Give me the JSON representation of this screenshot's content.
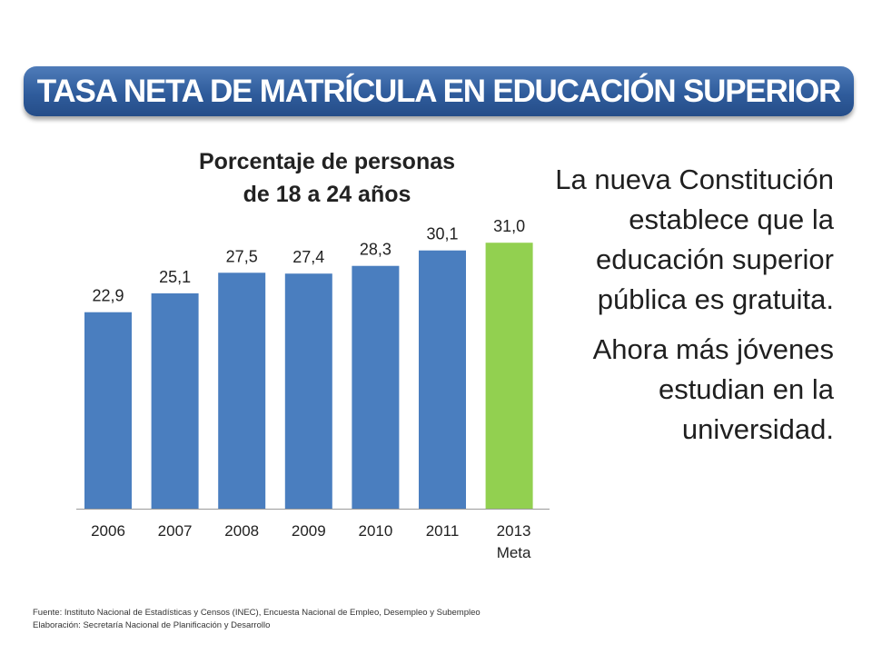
{
  "header": {
    "title": "TASA NETA DE MATRÍCULA EN EDUCACIÓN SUPERIOR"
  },
  "chart_data": {
    "type": "bar",
    "title_lines": [
      "Porcentaje de personas",
      "de 18 a 24 años"
    ],
    "categories": [
      [
        "2006"
      ],
      [
        "2007"
      ],
      [
        "2008"
      ],
      [
        "2009"
      ],
      [
        "2010"
      ],
      [
        "2011"
      ],
      [
        "2013",
        "Meta"
      ]
    ],
    "values_label": [
      "22,9",
      "25,1",
      "27,5",
      "27,4",
      "28,3",
      "30,1",
      "31,0"
    ],
    "values": [
      22.9,
      25.1,
      27.5,
      27.4,
      28.3,
      30.1,
      31.0
    ],
    "colors": [
      "#4a7ebf",
      "#4a7ebf",
      "#4a7ebf",
      "#4a7ebf",
      "#4a7ebf",
      "#4a7ebf",
      "#92d050"
    ],
    "ylim": [
      0,
      36
    ],
    "grid": false,
    "legend": "none"
  },
  "side_text": {
    "paragraph1": "La nueva Constitución establece que la educación superior pública es gratuita.",
    "paragraph2": "Ahora más jóvenes estudian en la universidad."
  },
  "footnote": {
    "source": "Fuente:  Instituto Nacional de Estadísticas y Censos  (INEC), Encuesta Nacional de Empleo, Desempleo y Subempleo",
    "elaboration": "Elaboración: Secretaría Nacional de Planificación y Desarrollo"
  }
}
